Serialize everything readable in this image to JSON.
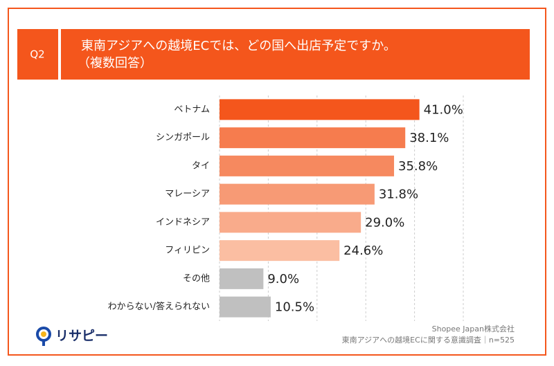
{
  "chart_data": {
    "type": "bar",
    "orientation": "horizontal",
    "question_number": "Q2",
    "title": "東南アジアへの越境ECでは、どの国へ出店予定ですか。",
    "subtitle": "（複数回答）",
    "categories": [
      "ベトナム",
      "シンガポール",
      "タイ",
      "マレーシア",
      "インドネシア",
      "フィリピン",
      "その他",
      "わからない/答えられない"
    ],
    "values": [
      41.0,
      38.1,
      35.8,
      31.8,
      29.0,
      24.6,
      9.0,
      10.5
    ],
    "value_labels": [
      "41.0%",
      "38.1%",
      "35.8%",
      "31.8%",
      "29.0%",
      "24.6%",
      "9.0%",
      "10.5%"
    ],
    "colors": [
      "#f4561c",
      "#f67c4e",
      "#f6895f",
      "#f79a75",
      "#f9ab8b",
      "#fbbea2",
      "#c0c0c0",
      "#c0c0c0"
    ],
    "xlim": [
      0,
      50
    ],
    "xticks": [
      0,
      10,
      20,
      30,
      40,
      50
    ],
    "show_tick_labels": false,
    "grid": true,
    "logo": "リサピー",
    "source": [
      "Shopee Japan株式会社",
      "東南アジアへの越境ECに関する意識調査｜n=525"
    ]
  }
}
